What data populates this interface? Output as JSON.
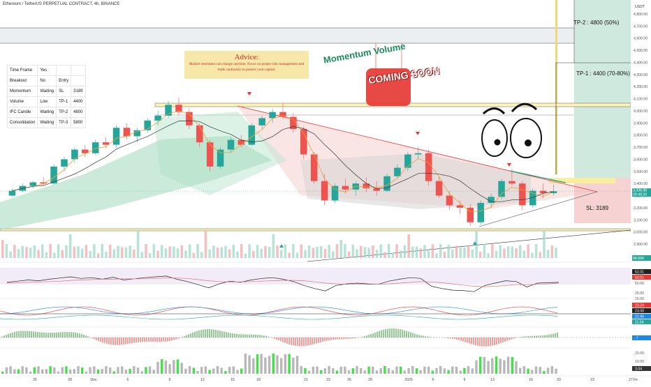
{
  "header": {
    "title": "Ethereum / TetherUS PERPETUAL CONTRACT, 4h, BINANCE",
    "currency": "USDT"
  },
  "status_table": {
    "rows": [
      [
        "Time Frame",
        "Yes",
        "",
        ""
      ],
      [
        "Breakout",
        "No",
        "Entry",
        ""
      ],
      [
        "Momentum",
        "Waiting",
        "SL",
        "3189"
      ],
      [
        "Volume",
        "Low",
        "TP-1",
        "4400"
      ],
      [
        "IFC Candle",
        "Waiting",
        "TP-2",
        "4800"
      ],
      [
        "Consolidation",
        "Waiting",
        "TP-3",
        "5800"
      ]
    ]
  },
  "advice": {
    "heading": "Advice:",
    "body": "Market sentiment can change anytime. Focus on proper risk management and trade cautiously to protect your capital."
  },
  "overlay_text": {
    "momentum_volume": "Momentum Volume",
    "coming_soon": "COMING SOON"
  },
  "annotations": {
    "tp2": "TP-2 : 4800 (50%)",
    "tp1": "TP-1 : 4400 (70-80%)",
    "sl": "SL: 3189"
  },
  "price_axis": {
    "ticks": [
      "4,800.00",
      "4,700.00",
      "4,600.00",
      "4,500.00",
      "4,400.00",
      "4,300.00",
      "4,200.00",
      "4,100.00",
      "4,000.00",
      "3,900.00",
      "3,800.00",
      "3,700.00",
      "3,600.00",
      "3,500.00",
      "3,400.00",
      "3,300.00",
      "3,200.00",
      "3,100.00",
      "3,000.00",
      "2,900.00"
    ],
    "current_price": "3,336.98",
    "countdown": "00:48:26",
    "volume_label": "98.65K"
  },
  "rsi_axis": {
    "ticks": [
      "75.00",
      "50.00",
      "25.00"
    ],
    "values": [
      "52.01",
      "50.01"
    ]
  },
  "dmi_axis": {
    "ticks": [
      "15.00"
    ],
    "values": [
      "23.24",
      "23.00",
      "21.95",
      "11.54"
    ]
  },
  "wave_axis": {
    "values": [
      "-7"
    ]
  },
  "hist_axis": {
    "ticks": [
      "20.00",
      "10.00"
    ],
    "values": [
      "3.04"
    ]
  },
  "time_axis": {
    "ticks": [
      "25",
      "28",
      "Dec",
      "6",
      "9",
      "12",
      "15",
      "18",
      "21",
      "23",
      "26",
      "29",
      "2025",
      "6",
      "9",
      "13",
      "16",
      "20",
      "23",
      "27",
      "Fe"
    ]
  },
  "chart_data": {
    "type": "candlestick",
    "symbol": "ETHUSDT.P",
    "timeframe": "4h",
    "ylim": [
      2800,
      4900
    ],
    "levels": {
      "tp2": 4800,
      "tp1": 4400,
      "sl": 3189,
      "entry_zone": [
        3300,
        3400
      ],
      "resistance": 4100,
      "support": 3000
    },
    "candles": [
      [
        3300,
        3360,
        3290,
        3340
      ],
      [
        3340,
        3400,
        3330,
        3380
      ],
      [
        3380,
        3420,
        3360,
        3410
      ],
      [
        3410,
        3450,
        3380,
        3400
      ],
      [
        3400,
        3560,
        3390,
        3540
      ],
      [
        3540,
        3620,
        3500,
        3600
      ],
      [
        3600,
        3700,
        3570,
        3680
      ],
      [
        3680,
        3720,
        3620,
        3650
      ],
      [
        3650,
        3760,
        3640,
        3740
      ],
      [
        3740,
        3780,
        3690,
        3720
      ],
      [
        3720,
        3880,
        3700,
        3860
      ],
      [
        3860,
        3900,
        3760,
        3790
      ],
      [
        3790,
        3860,
        3740,
        3840
      ],
      [
        3840,
        3940,
        3820,
        3920
      ],
      [
        3920,
        4000,
        3880,
        3960
      ],
      [
        3960,
        4080,
        3940,
        4050
      ],
      [
        4050,
        4110,
        3960,
        3990
      ],
      [
        3990,
        4020,
        3850,
        3880
      ],
      [
        3880,
        3900,
        3700,
        3740
      ],
      [
        3740,
        3760,
        3500,
        3540
      ],
      [
        3540,
        3700,
        3520,
        3680
      ],
      [
        3680,
        3780,
        3650,
        3760
      ],
      [
        3760,
        3800,
        3700,
        3720
      ],
      [
        3720,
        3900,
        3710,
        3880
      ],
      [
        3880,
        3960,
        3850,
        3940
      ],
      [
        3940,
        4020,
        3900,
        3990
      ],
      [
        3990,
        4060,
        3930,
        3950
      ],
      [
        3950,
        3980,
        3820,
        3850
      ],
      [
        3850,
        3870,
        3600,
        3640
      ],
      [
        3640,
        3660,
        3400,
        3420
      ],
      [
        3420,
        3480,
        3220,
        3260
      ],
      [
        3260,
        3400,
        3240,
        3380
      ],
      [
        3380,
        3440,
        3320,
        3350
      ],
      [
        3350,
        3420,
        3300,
        3400
      ],
      [
        3400,
        3450,
        3330,
        3360
      ],
      [
        3360,
        3420,
        3300,
        3340
      ],
      [
        3340,
        3480,
        3330,
        3460
      ],
      [
        3460,
        3560,
        3440,
        3530
      ],
      [
        3530,
        3660,
        3500,
        3640
      ],
      [
        3640,
        3700,
        3600,
        3650
      ],
      [
        3650,
        3680,
        3380,
        3420
      ],
      [
        3420,
        3460,
        3280,
        3300
      ],
      [
        3300,
        3340,
        3180,
        3220
      ],
      [
        3220,
        3260,
        3150,
        3200
      ],
      [
        3200,
        3230,
        3050,
        3080
      ],
      [
        3080,
        3260,
        3060,
        3240
      ],
      [
        3240,
        3320,
        3200,
        3290
      ],
      [
        3290,
        3440,
        3270,
        3420
      ],
      [
        3420,
        3520,
        3380,
        3400
      ],
      [
        3400,
        3420,
        3180,
        3220
      ],
      [
        3220,
        3360,
        3200,
        3340
      ],
      [
        3340,
        3400,
        3280,
        3320
      ],
      [
        3320,
        3390,
        3300,
        3336
      ]
    ],
    "series": [
      {
        "name": "RSI",
        "values": [
          52,
          55,
          58,
          56,
          60,
          63,
          66,
          62,
          64,
          60,
          65,
          58,
          61,
          64,
          66,
          68,
          60,
          54,
          46,
          38,
          48,
          55,
          52,
          58,
          62,
          64,
          60,
          54,
          44,
          36,
          30,
          44,
          48,
          50,
          48,
          47,
          55,
          60,
          64,
          62,
          42,
          36,
          32,
          31,
          28,
          44,
          50,
          56,
          54,
          40,
          50,
          51,
          52
        ]
      },
      {
        "name": "RSI MA",
        "values": [
          50,
          51,
          52,
          53,
          54,
          55,
          57,
          58,
          59,
          60,
          60,
          61,
          61,
          61,
          62,
          63,
          63,
          62,
          59,
          56,
          54,
          53,
          53,
          54,
          55,
          56,
          57,
          57,
          56,
          53,
          50,
          48,
          47,
          47,
          47,
          47,
          48,
          50,
          52,
          54,
          53,
          51,
          48,
          45,
          42,
          41,
          42,
          44,
          46,
          46,
          47,
          48,
          50
        ]
      }
    ]
  }
}
